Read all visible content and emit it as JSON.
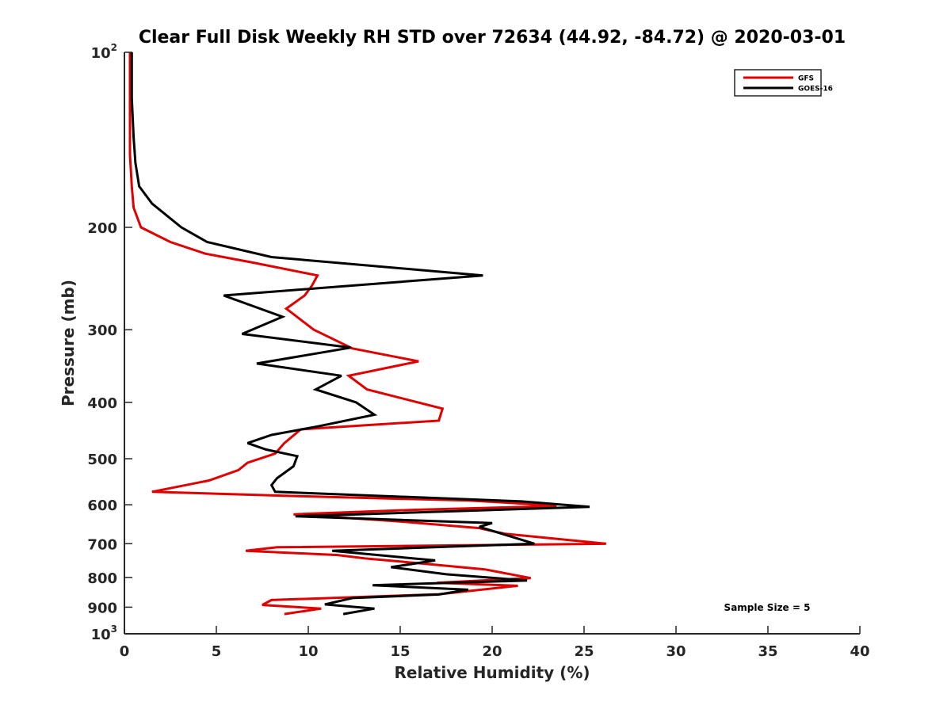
{
  "chart_data": {
    "type": "line",
    "title": "Clear Full Disk Weekly RH STD over 72634 (44.92, -84.72) @ 2020-03-01",
    "xlabel": "Relative Humidity (%)",
    "ylabel": "Pressure (mb)",
    "xlim": [
      0,
      40
    ],
    "ylim": [
      100,
      1000
    ],
    "yscale": "log",
    "yaxis_reversed": true,
    "grid": false,
    "x_ticks": [
      0,
      5,
      10,
      15,
      20,
      25,
      30,
      35,
      40
    ],
    "x_tick_labels": [
      "0",
      "5",
      "10",
      "15",
      "20",
      "25",
      "30",
      "35",
      "40"
    ],
    "y_ticks": [
      100,
      200,
      300,
      400,
      500,
      600,
      700,
      800,
      900,
      1000
    ],
    "y_tick_labels": [
      {
        "base": "10",
        "exp": "2"
      },
      {
        "base": "200",
        "exp": ""
      },
      {
        "base": "300",
        "exp": ""
      },
      {
        "base": "400",
        "exp": ""
      },
      {
        "base": "500",
        "exp": ""
      },
      {
        "base": "600",
        "exp": ""
      },
      {
        "base": "700",
        "exp": ""
      },
      {
        "base": "800",
        "exp": ""
      },
      {
        "base": "900",
        "exp": ""
      },
      {
        "base": "10",
        "exp": "3"
      }
    ],
    "legend": {
      "position": "top-right",
      "entries": [
        {
          "name": "GFS",
          "color": "#e00000"
        },
        {
          "name": "GOES-16",
          "color": "#000000"
        }
      ]
    },
    "annotation": "Sample Size = 5",
    "series": [
      {
        "name": "GFS",
        "color": "#e00000",
        "points": [
          [
            0.3,
            100
          ],
          [
            0.3,
            120
          ],
          [
            0.3,
            150
          ],
          [
            0.4,
            170
          ],
          [
            0.5,
            185
          ],
          [
            0.9,
            200
          ],
          [
            2.5,
            212
          ],
          [
            4.4,
            222
          ],
          [
            7.0,
            230
          ],
          [
            10.5,
            242
          ],
          [
            10.2,
            252
          ],
          [
            9.8,
            262
          ],
          [
            8.8,
            276
          ],
          [
            10.3,
            300
          ],
          [
            12.4,
            323
          ],
          [
            16.0,
            340
          ],
          [
            12.2,
            360
          ],
          [
            13.2,
            380
          ],
          [
            17.3,
            410
          ],
          [
            17.1,
            430
          ],
          [
            9.6,
            445
          ],
          [
            8.7,
            470
          ],
          [
            8.2,
            490
          ],
          [
            6.7,
            508
          ],
          [
            6.2,
            523
          ],
          [
            4.6,
            545
          ],
          [
            1.5,
            570
          ],
          [
            9.6,
            580
          ],
          [
            18.7,
            590
          ],
          [
            21.2,
            596
          ],
          [
            23.5,
            603
          ],
          [
            15.8,
            612
          ],
          [
            9.2,
            623
          ],
          [
            14.7,
            640
          ],
          [
            19.3,
            658
          ],
          [
            20.7,
            673
          ],
          [
            26.2,
            700
          ],
          [
            8.3,
            710
          ],
          [
            6.6,
            720
          ],
          [
            11.6,
            732
          ],
          [
            13.1,
            742
          ],
          [
            16.4,
            758
          ],
          [
            19.6,
            775
          ],
          [
            22.1,
            802
          ],
          [
            17.0,
            817
          ],
          [
            21.4,
            827
          ],
          [
            17.1,
            855
          ],
          [
            8.0,
            875
          ],
          [
            7.5,
            892
          ],
          [
            10.7,
            905
          ],
          [
            8.7,
            925
          ]
        ]
      },
      {
        "name": "GOES-16",
        "color": "#000000",
        "points": [
          [
            0.4,
            100
          ],
          [
            0.4,
            120
          ],
          [
            0.5,
            140
          ],
          [
            0.6,
            155
          ],
          [
            0.8,
            170
          ],
          [
            1.5,
            182
          ],
          [
            3.1,
            200
          ],
          [
            4.5,
            212
          ],
          [
            8.0,
            225
          ],
          [
            19.5,
            242
          ],
          [
            5.4,
            262
          ],
          [
            8.6,
            285
          ],
          [
            6.4,
            305
          ],
          [
            12.3,
            322
          ],
          [
            7.2,
            343
          ],
          [
            11.8,
            360
          ],
          [
            10.4,
            380
          ],
          [
            12.6,
            400
          ],
          [
            13.6,
            420
          ],
          [
            10.5,
            440
          ],
          [
            8.0,
            455
          ],
          [
            6.7,
            470
          ],
          [
            7.7,
            482
          ],
          [
            9.4,
            495
          ],
          [
            9.2,
            515
          ],
          [
            8.3,
            540
          ],
          [
            8.0,
            555
          ],
          [
            8.2,
            570
          ],
          [
            21.6,
            592
          ],
          [
            25.3,
            605
          ],
          [
            9.3,
            628
          ],
          [
            20.0,
            645
          ],
          [
            19.3,
            655
          ],
          [
            22.3,
            700
          ],
          [
            11.3,
            720
          ],
          [
            16.9,
            748
          ],
          [
            14.5,
            768
          ],
          [
            17.5,
            790
          ],
          [
            21.9,
            810
          ],
          [
            13.5,
            825
          ],
          [
            18.7,
            840
          ],
          [
            17.1,
            856
          ],
          [
            12.4,
            868
          ],
          [
            10.9,
            890
          ],
          [
            13.6,
            905
          ],
          [
            11.9,
            925
          ]
        ]
      }
    ]
  }
}
